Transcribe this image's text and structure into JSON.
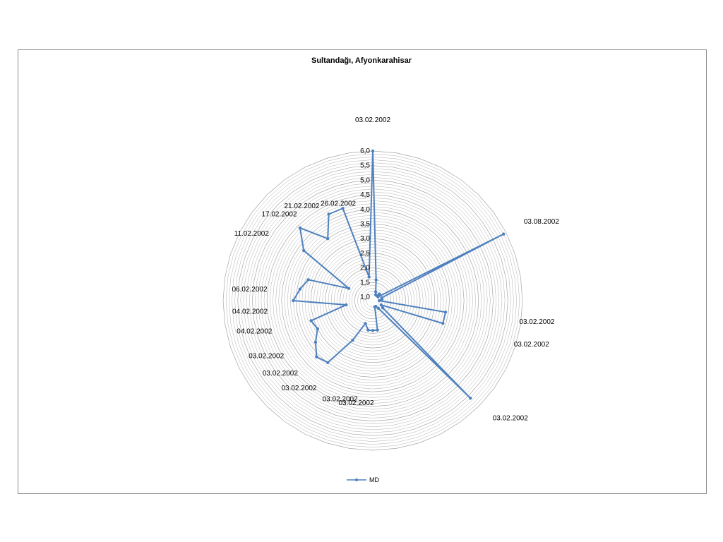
{
  "colors": {
    "series": "#4f81bd",
    "grid": "#a6a6a6",
    "frame": "#8c8c8c"
  },
  "chart_data": {
    "type": "radar",
    "title": "Sultandağı, Afyonkarahisar",
    "r_min": 1.0,
    "r_max": 6.0,
    "grid": true,
    "radial_ticks": [
      "1,0",
      "1,5",
      "2,0",
      "2,5",
      "3,0",
      "3,5",
      "4,0",
      "4,5",
      "5,0",
      "5,5",
      "6,0"
    ],
    "legend_position": "bottom",
    "series": [
      {
        "name": "MD",
        "points": [
          {
            "angle_deg": 0,
            "value": 6.0
          },
          {
            "angle_deg": 9,
            "value": 1.6
          },
          {
            "angle_deg": 18,
            "value": 1.2
          },
          {
            "angle_deg": 27,
            "value": 1.1
          },
          {
            "angle_deg": 36,
            "value": 1.1
          },
          {
            "angle_deg": 45,
            "value": 1.2
          },
          {
            "angle_deg": 54,
            "value": 1.1
          },
          {
            "angle_deg": 63,
            "value": 5.9
          },
          {
            "angle_deg": 72,
            "value": 1.2
          },
          {
            "angle_deg": 81,
            "value": 1.2
          },
          {
            "angle_deg": 90,
            "value": 1.1
          },
          {
            "angle_deg": 99,
            "value": 3.4
          },
          {
            "angle_deg": 108,
            "value": 3.4
          },
          {
            "angle_deg": 117,
            "value": 1.2
          },
          {
            "angle_deg": 126,
            "value": 1.3
          },
          {
            "angle_deg": 135,
            "value": 5.6
          },
          {
            "angle_deg": 144,
            "value": 1.2
          },
          {
            "angle_deg": 153,
            "value": 1.1
          },
          {
            "angle_deg": 162,
            "value": 1.1
          },
          {
            "angle_deg": 171,
            "value": 1.9
          },
          {
            "angle_deg": 180,
            "value": 1.9
          },
          {
            "angle_deg": 189,
            "value": 1.9
          },
          {
            "angle_deg": 198,
            "value": 1.7
          },
          {
            "angle_deg": 207,
            "value": 2.4
          },
          {
            "angle_deg": 216,
            "value": 3.5
          },
          {
            "angle_deg": 225,
            "value": 3.6
          },
          {
            "angle_deg": 234,
            "value": 3.3
          },
          {
            "angle_deg": 243,
            "value": 3.0
          },
          {
            "angle_deg": 252,
            "value": 3.1
          },
          {
            "angle_deg": 261,
            "value": 1.8
          },
          {
            "angle_deg": 270,
            "value": 3.6
          },
          {
            "angle_deg": 279,
            "value": 3.4
          },
          {
            "angle_deg": 288,
            "value": 3.2
          },
          {
            "angle_deg": 297,
            "value": 1.8
          },
          {
            "angle_deg": 306,
            "value": 3.8
          },
          {
            "angle_deg": 315,
            "value": 4.4
          },
          {
            "angle_deg": 324,
            "value": 3.5
          },
          {
            "angle_deg": 333,
            "value": 4.2
          },
          {
            "angle_deg": 342,
            "value": 4.2
          },
          {
            "angle_deg": 351,
            "value": 1.7
          }
        ]
      }
    ],
    "category_labels": [
      {
        "text": "03.02.2002",
        "angle_deg": 0
      },
      {
        "text": "03.08.2002",
        "angle_deg": 63
      },
      {
        "text": "03.02.2002",
        "angle_deg": 99
      },
      {
        "text": "03.02.2002",
        "angle_deg": 108
      },
      {
        "text": "03.02.2002",
        "angle_deg": 135
      },
      {
        "text": "03.02.2002",
        "angle_deg": 189
      },
      {
        "text": "03.02.2002",
        "angle_deg": 198
      },
      {
        "text": "03.02.2002",
        "angle_deg": 212
      },
      {
        "text": "03.02.2002",
        "angle_deg": 225
      },
      {
        "text": "03.02.2002",
        "angle_deg": 237
      },
      {
        "text": "04.02.2002",
        "angle_deg": 252
      },
      {
        "text": "04.02.2002",
        "angle_deg": 263
      },
      {
        "text": "06.02.2002",
        "angle_deg": 275
      },
      {
        "text": "11.02.2002",
        "angle_deg": 302
      },
      {
        "text": "17.02.2002",
        "angle_deg": 318
      },
      {
        "text": "21.02.2002",
        "angle_deg": 330
      },
      {
        "text": "26.02.2002",
        "angle_deg": 340
      }
    ]
  }
}
